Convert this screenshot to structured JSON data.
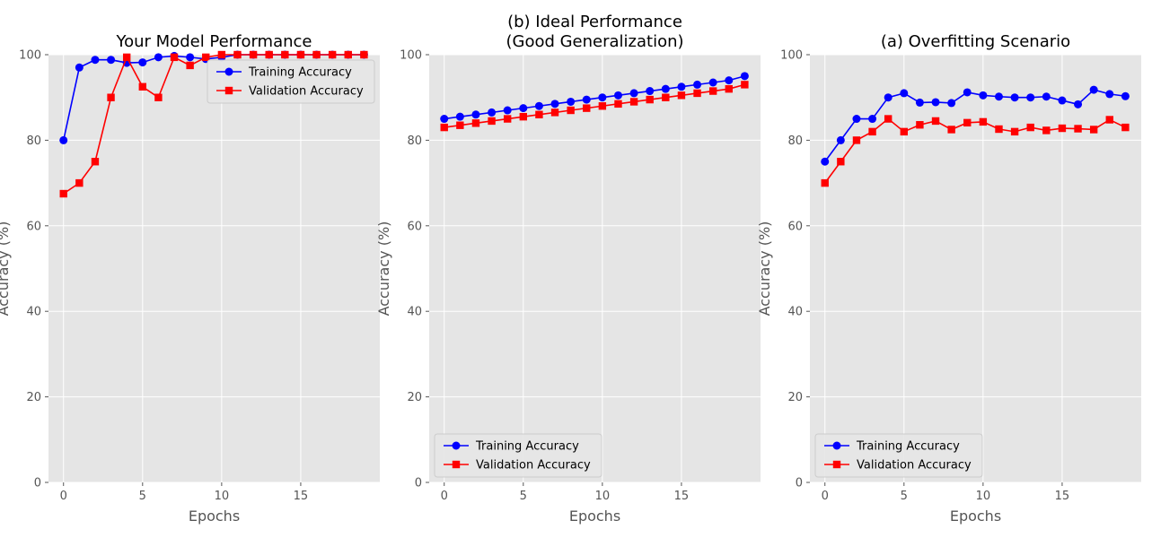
{
  "chart_data": [
    {
      "type": "line",
      "title": "Your Model Performance",
      "xlabel": "Epochs",
      "ylabel": "Accuracy (%)",
      "ylim": [
        0,
        100
      ],
      "xticks": [
        0,
        5,
        10,
        15
      ],
      "yticks": [
        0,
        20,
        40,
        60,
        80,
        100
      ],
      "grid": true,
      "legend_position": "upper-right",
      "x": [
        0,
        1,
        2,
        3,
        4,
        5,
        6,
        7,
        8,
        9,
        10,
        11,
        12,
        13,
        14,
        15,
        16,
        17,
        18,
        19
      ],
      "series": [
        {
          "name": "Training Accuracy",
          "color": "#0000ff",
          "marker": "circle",
          "values": [
            80,
            97,
            98.8,
            98.8,
            98.1,
            98.2,
            99.4,
            99.7,
            99.4,
            99.0,
            99.4,
            100,
            100,
            100,
            100,
            100,
            100,
            100,
            100,
            100
          ]
        },
        {
          "name": "Validation Accuracy",
          "color": "#ff0000",
          "marker": "square",
          "values": [
            67.5,
            70,
            75,
            90,
            99.4,
            92.5,
            90,
            99.4,
            97.5,
            99.4,
            100,
            100,
            100,
            100,
            100,
            100,
            100,
            100,
            100,
            100
          ]
        }
      ]
    },
    {
      "type": "line",
      "title": "(b) Ideal Performance\n(Good Generalization)",
      "xlabel": "Epochs",
      "ylabel": "Accuracy (%)",
      "ylim": [
        0,
        100
      ],
      "xticks": [
        0,
        5,
        10,
        15
      ],
      "yticks": [
        0,
        20,
        40,
        60,
        80,
        100
      ],
      "grid": true,
      "legend_position": "lower-left",
      "x": [
        0,
        1,
        2,
        3,
        4,
        5,
        6,
        7,
        8,
        9,
        10,
        11,
        12,
        13,
        14,
        15,
        16,
        17,
        18,
        19
      ],
      "series": [
        {
          "name": "Training Accuracy",
          "color": "#0000ff",
          "marker": "circle",
          "values": [
            85,
            85.5,
            86,
            86.5,
            87,
            87.5,
            88,
            88.5,
            89,
            89.5,
            90,
            90.5,
            91,
            91.5,
            92,
            92.5,
            93,
            93.5,
            94,
            95
          ]
        },
        {
          "name": "Validation Accuracy",
          "color": "#ff0000",
          "marker": "square",
          "values": [
            83,
            83.5,
            84,
            84.5,
            85,
            85.5,
            86,
            86.5,
            87,
            87.5,
            88,
            88.5,
            89,
            89.5,
            90,
            90.5,
            91,
            91.5,
            92,
            93
          ]
        }
      ]
    },
    {
      "type": "line",
      "title": "(a) Overfitting Scenario",
      "xlabel": "Epochs",
      "ylabel": "Accuracy (%)",
      "ylim": [
        0,
        100
      ],
      "xticks": [
        0,
        5,
        10,
        15
      ],
      "yticks": [
        0,
        20,
        40,
        60,
        80,
        100
      ],
      "grid": true,
      "legend_position": "lower-left",
      "x": [
        0,
        1,
        2,
        3,
        4,
        5,
        6,
        7,
        8,
        9,
        10,
        11,
        12,
        13,
        14,
        15,
        16,
        17,
        18,
        19
      ],
      "series": [
        {
          "name": "Training Accuracy",
          "color": "#0000ff",
          "marker": "circle",
          "values": [
            75,
            80,
            85,
            85,
            90,
            91,
            88.8,
            88.9,
            88.7,
            91.2,
            90.5,
            90.2,
            90,
            90,
            90.2,
            89.3,
            88.4,
            91.8,
            90.8,
            90.3
          ]
        },
        {
          "name": "Validation Accuracy",
          "color": "#ff0000",
          "marker": "square",
          "values": [
            70,
            75,
            80,
            82,
            85,
            82,
            83.6,
            84.5,
            82.5,
            84.1,
            84.3,
            82.6,
            82,
            83,
            82.3,
            82.8,
            82.7,
            82.5,
            84.8,
            83
          ]
        }
      ]
    }
  ]
}
